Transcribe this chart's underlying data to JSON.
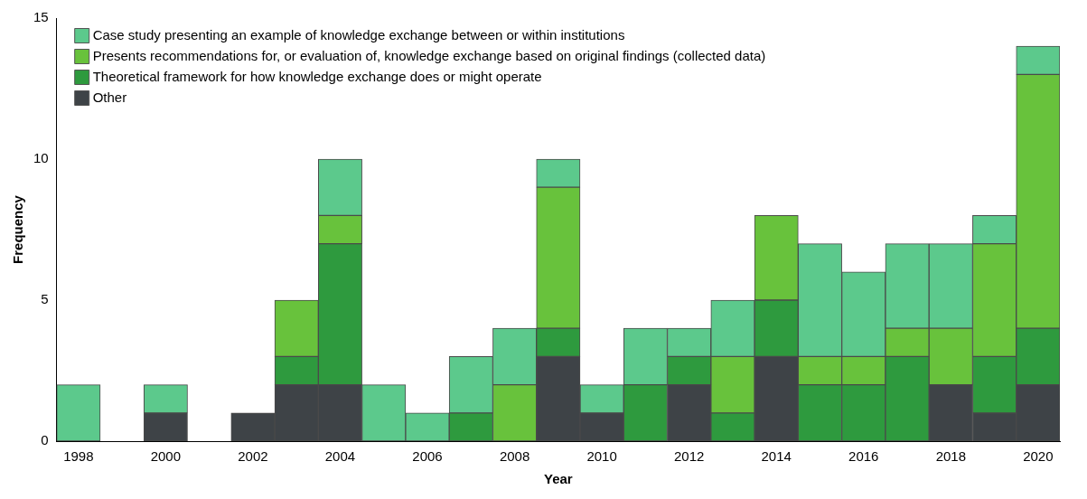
{
  "chart_data": {
    "type": "bar",
    "stacked": true,
    "xlabel": "Year",
    "ylabel": "Frequency",
    "categories": [
      "1998",
      null,
      "2000",
      null,
      "2002",
      null,
      "2004",
      null,
      "2006",
      null,
      "2008",
      null,
      "2010",
      null,
      "2012",
      null,
      "2014",
      null,
      "2016",
      null,
      "2018",
      null,
      "2020"
    ],
    "series": [
      {
        "name": "Other",
        "color": "#3e4347",
        "values": [
          0,
          0,
          1,
          0,
          1,
          2,
          2,
          0,
          0,
          0,
          0,
          3,
          1,
          0,
          2,
          0,
          3,
          0,
          0,
          0,
          2,
          1,
          2
        ]
      },
      {
        "name": "Theoretical framework for how knowledge exchange does or might operate",
        "color": "#2e9a3e",
        "values": [
          0,
          0,
          0,
          0,
          0,
          1,
          5,
          0,
          0,
          1,
          0,
          1,
          0,
          2,
          1,
          1,
          2,
          2,
          2,
          3,
          0,
          2,
          2
        ]
      },
      {
        "name": "Presents recommendations for, or evaluation of, knowledge exchange based on original findings (collected data)",
        "color": "#68c23c",
        "values": [
          0,
          0,
          0,
          0,
          0,
          2,
          1,
          0,
          0,
          0,
          2,
          5,
          0,
          0,
          0,
          2,
          3,
          1,
          1,
          1,
          2,
          4,
          9
        ]
      },
      {
        "name": "Case study presenting an example of knowledge exchange between or within institutions",
        "color": "#5cc98c",
        "values": [
          2,
          0,
          1,
          0,
          0,
          0,
          2,
          2,
          1,
          2,
          2,
          1,
          1,
          2,
          1,
          2,
          0,
          4,
          3,
          3,
          3,
          1,
          1
        ]
      }
    ],
    "ylim": [
      0,
      15
    ],
    "yticks": [
      0,
      5,
      10,
      15
    ],
    "grid": false,
    "legend": "top left"
  }
}
